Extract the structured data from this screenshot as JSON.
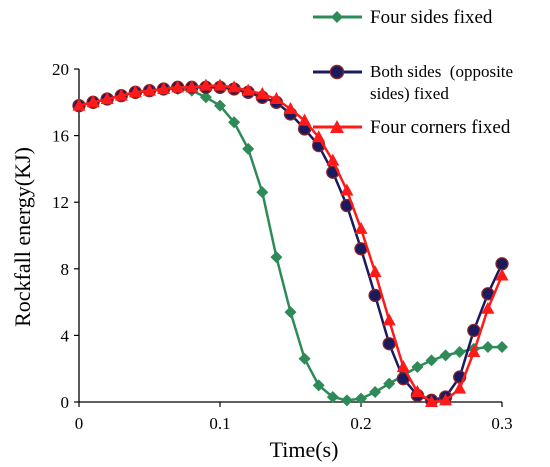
{
  "chart_data": {
    "type": "line",
    "xlabel": "Time(s)",
    "ylabel": "Rockfall energy(KJ)",
    "xlim": [
      0,
      0.3
    ],
    "ylim": [
      0,
      20
    ],
    "x_ticks": [
      "0",
      "0.1",
      "0.2",
      "0.3"
    ],
    "y_ticks": [
      "0",
      "4",
      "8",
      "12",
      "16",
      "20"
    ],
    "grid": false,
    "legend_position": "top-right",
    "series": [
      {
        "name": "Four sides fixed",
        "color": "#2e8b57",
        "marker": "diamond",
        "x": [
          0,
          0.01,
          0.02,
          0.03,
          0.04,
          0.05,
          0.06,
          0.07,
          0.08,
          0.09,
          0.1,
          0.11,
          0.12,
          0.13,
          0.14,
          0.15,
          0.16,
          0.17,
          0.18,
          0.19,
          0.2,
          0.21,
          0.22,
          0.23,
          0.24,
          0.25,
          0.26,
          0.27,
          0.28,
          0.29,
          0.3
        ],
        "values": [
          17.8,
          18.0,
          18.2,
          18.4,
          18.6,
          18.7,
          18.8,
          18.8,
          18.7,
          18.3,
          17.8,
          16.8,
          15.2,
          12.6,
          8.7,
          5.4,
          2.6,
          1.0,
          0.3,
          0.1,
          0.2,
          0.6,
          1.1,
          1.6,
          2.1,
          2.5,
          2.8,
          3.0,
          3.2,
          3.3,
          3.3
        ]
      },
      {
        "name": "Both sides  (opposite sides) fixed",
        "color": "#1a1a5e",
        "marker": "circle",
        "x": [
          0,
          0.01,
          0.02,
          0.03,
          0.04,
          0.05,
          0.06,
          0.07,
          0.08,
          0.09,
          0.1,
          0.11,
          0.12,
          0.13,
          0.14,
          0.15,
          0.16,
          0.17,
          0.18,
          0.19,
          0.2,
          0.21,
          0.22,
          0.23,
          0.24,
          0.25,
          0.26,
          0.27,
          0.28,
          0.29,
          0.3
        ],
        "values": [
          17.8,
          18.0,
          18.2,
          18.4,
          18.6,
          18.7,
          18.8,
          18.9,
          18.9,
          18.9,
          18.9,
          18.8,
          18.6,
          18.3,
          18.0,
          17.3,
          16.4,
          15.4,
          13.8,
          11.8,
          9.2,
          6.4,
          3.5,
          1.4,
          0.4,
          0.1,
          0.3,
          1.5,
          4.3,
          6.5,
          8.3
        ]
      },
      {
        "name": "Four corners fixed",
        "color": "#ff1a1a",
        "marker": "triangle",
        "x": [
          0,
          0.01,
          0.02,
          0.03,
          0.04,
          0.05,
          0.06,
          0.07,
          0.08,
          0.09,
          0.1,
          0.11,
          0.12,
          0.13,
          0.14,
          0.15,
          0.16,
          0.17,
          0.18,
          0.19,
          0.2,
          0.21,
          0.22,
          0.23,
          0.24,
          0.25,
          0.26,
          0.27,
          0.28,
          0.29,
          0.3
        ],
        "values": [
          17.8,
          18.0,
          18.2,
          18.4,
          18.6,
          18.7,
          18.8,
          18.9,
          18.9,
          19.0,
          19.0,
          18.9,
          18.7,
          18.5,
          18.2,
          17.6,
          16.9,
          15.9,
          14.5,
          12.7,
          10.4,
          7.8,
          4.9,
          2.1,
          0.6,
          0.0,
          0.1,
          0.8,
          3.0,
          5.6,
          7.6
        ]
      }
    ]
  }
}
